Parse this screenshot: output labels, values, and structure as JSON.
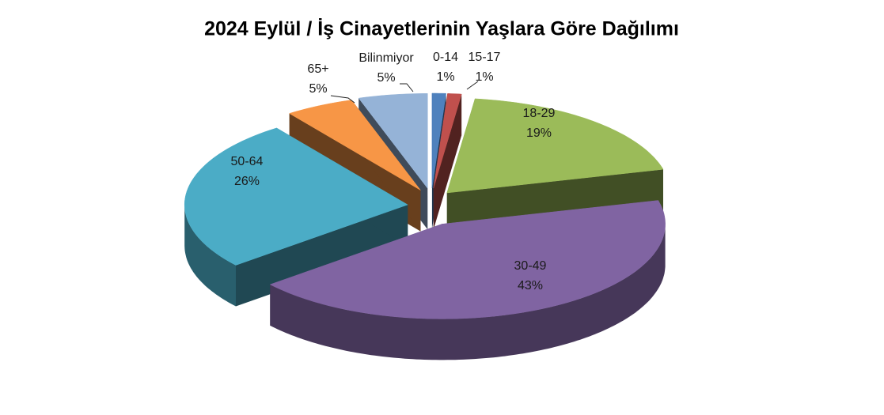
{
  "chart_data": {
    "type": "pie",
    "title": "2024 Eylül / İş Cinayetlerinin Yaşlara Göre Dağılımı",
    "categories": [
      "0-14",
      "15-17",
      "18-29",
      "30-49",
      "50-64",
      "65+",
      "Bilinmiyor"
    ],
    "values": [
      1,
      1,
      19,
      43,
      26,
      5,
      5
    ],
    "value_labels": [
      "1%",
      "1%",
      "19%",
      "43%",
      "26%",
      "5%",
      "5%"
    ],
    "colors": [
      "#4f81bd",
      "#c0504d",
      "#9bbb59",
      "#8064a2",
      "#4bacc6",
      "#f79646",
      "#95b3d7"
    ]
  }
}
